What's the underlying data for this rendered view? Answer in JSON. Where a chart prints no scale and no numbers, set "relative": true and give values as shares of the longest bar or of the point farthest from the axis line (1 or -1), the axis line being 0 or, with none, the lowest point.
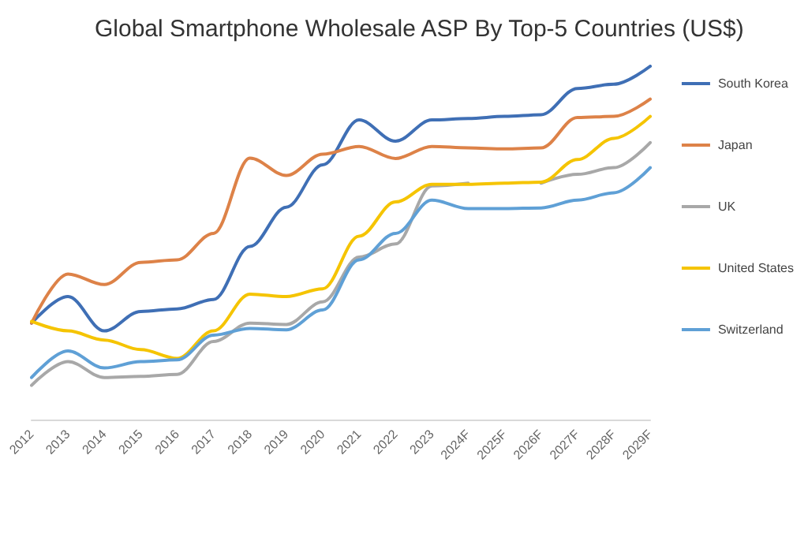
{
  "chart_data": {
    "type": "line",
    "title": "Global Smartphone Wholesale ASP By Top-5 Countries (US$)",
    "categories": [
      "2012",
      "2013",
      "2014",
      "2015",
      "2016",
      "2017",
      "2018",
      "2019",
      "2020",
      "2021",
      "2022",
      "2023",
      "2024F",
      "2025F",
      "2026F",
      "2027F",
      "2028F",
      "2029F"
    ],
    "relative": true,
    "legend": "right",
    "marker": "none",
    "grid": false,
    "series": [
      {
        "name": "South Korea",
        "color": "#3f6fb5",
        "values": [
          0.273,
          0.348,
          0.251,
          0.306,
          0.313,
          0.34,
          0.49,
          0.601,
          0.721,
          0.848,
          0.788,
          0.848,
          0.852,
          0.858,
          0.863,
          0.937,
          0.949,
          1
        ]
      },
      {
        "name": "Japan",
        "color": "#dd8248",
        "values": [
          0.273,
          0.412,
          0.382,
          0.445,
          0.452,
          0.527,
          0.74,
          0.691,
          0.751,
          0.773,
          0.739,
          0.773,
          0.769,
          0.766,
          0.769,
          0.855,
          0.858,
          0.907
        ]
      },
      {
        "name": "UK",
        "color": "#a8a8a8",
        "values": [
          0.097,
          0.164,
          0.119,
          0.122,
          0.128,
          0.221,
          0.273,
          0.269,
          0.333,
          0.46,
          0.497,
          0.661,
          0.669,
          null,
          0.669,
          0.694,
          0.713,
          0.784
        ]
      },
      {
        "name": "United States",
        "color": "#f5c400",
        "values": [
          0.278,
          0.251,
          0.225,
          0.198,
          0.173,
          0.251,
          0.355,
          0.348,
          0.37,
          0.519,
          0.616,
          0.666,
          0.666,
          0.669,
          0.672,
          0.736,
          0.796,
          0.858
        ]
      },
      {
        "name": "Switzerland",
        "color": "#5fa0d6",
        "values": [
          0.119,
          0.194,
          0.146,
          0.164,
          0.169,
          0.239,
          0.258,
          0.254,
          0.31,
          0.452,
          0.527,
          0.621,
          0.597,
          0.597,
          0.599,
          0.621,
          0.642,
          0.713
        ]
      }
    ]
  }
}
